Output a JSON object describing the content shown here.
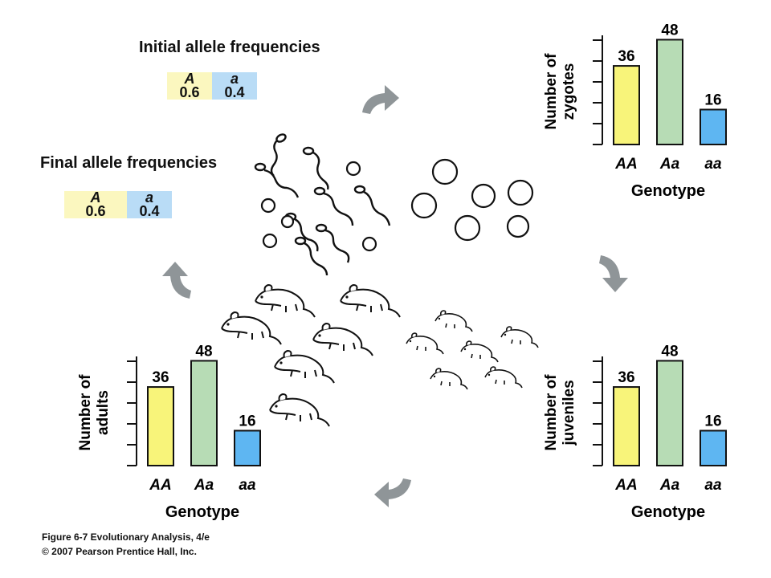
{
  "initial": {
    "heading": "Initial allele frequencies",
    "alleles": [
      {
        "label": "A",
        "value": "0.6",
        "color": "#fbf7bf"
      },
      {
        "label": "a",
        "value": "0.4",
        "color": "#b9dcf6"
      }
    ]
  },
  "final": {
    "heading": "Final allele frequencies",
    "alleles": [
      {
        "label": "A",
        "value": "0.6",
        "color": "#fbf7bf"
      },
      {
        "label": "a",
        "value": "0.4",
        "color": "#b9dcf6"
      }
    ]
  },
  "colors": {
    "AA": "#f8f47a",
    "Aa": "#b7dcb5",
    "aa": "#5eb6f2",
    "arrow": "#8f9598"
  },
  "chart_data": [
    {
      "id": "zygotes",
      "type": "bar",
      "ylabel": "Number of zygotes",
      "ylabel_lines": [
        "Number of",
        "zygotes"
      ],
      "xlabel": "Genotype",
      "categories": [
        "AA",
        "Aa",
        "aa"
      ],
      "values": [
        36,
        48,
        16
      ],
      "value_labels": [
        "36",
        "48",
        "16"
      ],
      "ylim": [
        0,
        50
      ]
    },
    {
      "id": "juveniles",
      "type": "bar",
      "ylabel": "Number of juveniles",
      "ylabel_lines": [
        "Number of",
        "juveniles"
      ],
      "xlabel": "Genotype",
      "categories": [
        "AA",
        "Aa",
        "aa"
      ],
      "values": [
        36,
        48,
        16
      ],
      "value_labels": [
        "36",
        "48",
        "16"
      ],
      "ylim": [
        0,
        50
      ]
    },
    {
      "id": "adults",
      "type": "bar",
      "ylabel": "Number of adults",
      "ylabel_lines": [
        "Number of",
        "adults"
      ],
      "xlabel": "Genotype",
      "categories": [
        "AA",
        "Aa",
        "aa"
      ],
      "values": [
        36,
        48,
        16
      ],
      "value_labels": [
        "36",
        "48",
        "16"
      ],
      "ylim": [
        0,
        50
      ]
    }
  ],
  "illustrations": {
    "gametes": "sperm-and-egg-icons",
    "adults": "adult-mouse-icons",
    "juveniles": "juvenile-mouse-icons"
  },
  "footer": {
    "line1": "Figure 6-7  Evolutionary Analysis, 4/e",
    "line2": "© 2007 Pearson Prentice Hall, Inc."
  }
}
